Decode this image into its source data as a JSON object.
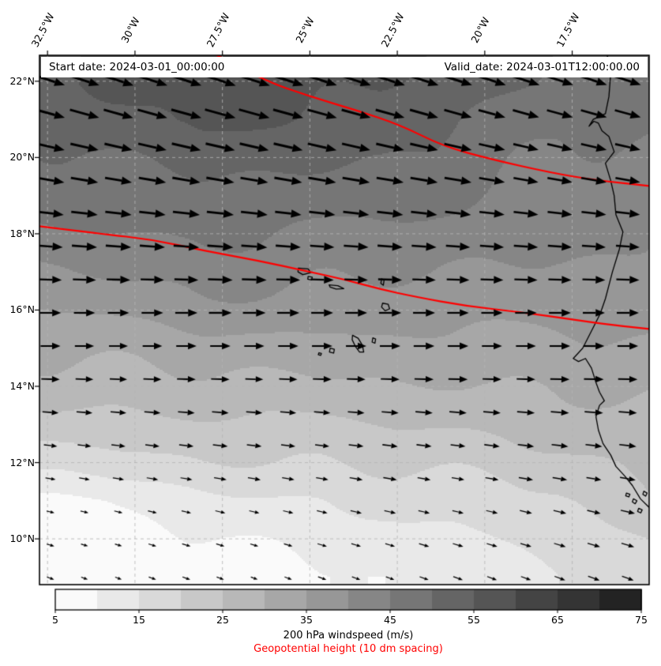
{
  "header": {
    "start_date": "Start date: 2024-03-01_00:00:00",
    "valid_date": "Valid_date: 2024-03-01T12:00:00.00"
  },
  "chart_data": {
    "type": "heatmap",
    "title": "",
    "grid_color": "#b5b5b5",
    "projection": {
      "lon_min": -32.73,
      "lon_max": -15.3,
      "lat_min": 8.8,
      "lat_max": 22.68
    },
    "x_axis": {
      "tick_values": [
        -32.5,
        -30,
        -27.5,
        -25,
        -22.5,
        -20,
        -17.5
      ],
      "tick_labels": [
        "32.5°W",
        "30°W",
        "27.5°W",
        "25°W",
        "22.5°W",
        "20°W",
        "17.5°W"
      ]
    },
    "y_axis": {
      "tick_values": [
        22,
        20,
        18,
        16,
        14,
        12,
        10
      ],
      "tick_labels": [
        "22°N",
        "20°N",
        "18°N",
        "16°N",
        "14°N",
        "12°N",
        "10°N"
      ]
    },
    "windspeed_field": {
      "units": "m/s",
      "lons": [
        -33,
        -28,
        -23,
        -18,
        -15
      ],
      "lats": [
        23,
        22,
        21,
        20,
        19,
        18,
        17,
        16,
        15,
        14,
        13,
        12,
        11,
        10,
        9
      ],
      "speeds": [
        [
          52,
          57,
          57,
          50,
          46
        ],
        [
          53,
          58,
          56,
          49,
          46
        ],
        [
          52,
          56,
          53,
          47,
          45
        ],
        [
          49,
          52,
          50,
          45,
          44
        ],
        [
          46,
          49,
          47,
          43,
          42
        ],
        [
          43,
          46,
          44,
          41,
          40
        ],
        [
          39,
          42,
          41,
          39,
          38
        ],
        [
          35,
          38,
          37,
          37,
          37
        ],
        [
          31,
          33,
          33,
          34,
          35
        ],
        [
          27,
          29,
          29,
          30,
          32
        ],
        [
          22,
          24,
          25,
          27,
          29
        ],
        [
          17,
          19,
          21,
          23,
          26
        ],
        [
          9,
          13,
          16,
          19,
          25
        ],
        [
          7,
          10,
          12,
          17,
          22
        ],
        [
          6,
          8,
          10,
          14,
          20
        ]
      ],
      "arrow_angles_by_lat": [
        -20,
        -18,
        -15,
        -12,
        -8,
        -5,
        -2,
        0,
        0,
        -2,
        -5,
        -8,
        -12,
        -16,
        -20
      ]
    },
    "geopotential_contours": {
      "color": "#ff0000",
      "spacing": "10 dm",
      "lines": [
        [
          [
            -27.8,
            22.75
          ],
          [
            -26.4,
            22.05
          ],
          [
            -25.0,
            21.6
          ],
          [
            -23.7,
            21.25
          ],
          [
            -22.4,
            20.85
          ],
          [
            -21.2,
            20.3
          ],
          [
            -19.8,
            19.95
          ],
          [
            -18.1,
            19.6
          ],
          [
            -16.8,
            19.4
          ],
          [
            -15.25,
            19.25
          ]
        ],
        [
          [
            -32.75,
            18.2
          ],
          [
            -31.0,
            18.0
          ],
          [
            -29.5,
            17.85
          ],
          [
            -28.0,
            17.55
          ],
          [
            -26.5,
            17.3
          ],
          [
            -25.0,
            17.0
          ],
          [
            -24.0,
            16.8
          ],
          [
            -23.0,
            16.55
          ],
          [
            -22.0,
            16.35
          ],
          [
            -20.5,
            16.1
          ],
          [
            -19.0,
            15.95
          ],
          [
            -17.5,
            15.75
          ],
          [
            -16.3,
            15.6
          ],
          [
            -15.25,
            15.5
          ]
        ]
      ]
    },
    "coastline": {
      "main": [
        [
          -16.5,
          22.68
        ],
        [
          -16.4,
          22.2
        ],
        [
          -16.45,
          21.6
        ],
        [
          -16.55,
          21.15
        ],
        [
          -16.9,
          21.0
        ],
        [
          -17.02,
          20.82
        ],
        [
          -16.88,
          20.95
        ],
        [
          -16.75,
          20.9
        ],
        [
          -16.65,
          20.7
        ],
        [
          -16.45,
          20.55
        ],
        [
          -16.3,
          20.15
        ],
        [
          -16.55,
          19.85
        ],
        [
          -16.4,
          19.4
        ],
        [
          -16.3,
          19.0
        ],
        [
          -16.25,
          18.5
        ],
        [
          -16.05,
          18.05
        ],
        [
          -16.15,
          17.6
        ],
        [
          -16.35,
          17.0
        ],
        [
          -16.55,
          16.3
        ],
        [
          -16.7,
          15.9
        ],
        [
          -16.95,
          15.45
        ],
        [
          -17.2,
          15.0
        ],
        [
          -17.47,
          14.73
        ],
        [
          -17.32,
          14.65
        ],
        [
          -17.12,
          14.73
        ],
        [
          -16.95,
          14.48
        ],
        [
          -16.82,
          14.1
        ],
        [
          -16.72,
          13.85
        ],
        [
          -16.58,
          13.62
        ],
        [
          -16.72,
          13.5
        ],
        [
          -16.82,
          13.2
        ],
        [
          -16.75,
          12.85
        ],
        [
          -16.62,
          12.5
        ],
        [
          -16.4,
          12.2
        ],
        [
          -16.25,
          11.9
        ],
        [
          -16.0,
          11.65
        ],
        [
          -15.78,
          11.4
        ],
        [
          -15.55,
          11.05
        ],
        [
          -15.25,
          10.78
        ]
      ],
      "islands": [
        {
          "name": "santo-antao",
          "pts": [
            [
              -25.33,
              17.1
            ],
            [
              -25.05,
              17.08
            ],
            [
              -24.97,
              16.98
            ],
            [
              -25.2,
              16.93
            ],
            [
              -25.34,
              17.0
            ]
          ]
        },
        {
          "name": "sao-vicente",
          "pts": [
            [
              -25.05,
              16.88
            ],
            [
              -24.93,
              16.86
            ],
            [
              -24.95,
              16.79
            ],
            [
              -25.06,
              16.81
            ]
          ]
        },
        {
          "name": "sao-nicolau",
          "pts": [
            [
              -24.45,
              16.66
            ],
            [
              -24.2,
              16.64
            ],
            [
              -24.03,
              16.56
            ],
            [
              -24.25,
              16.55
            ],
            [
              -24.42,
              16.6
            ]
          ]
        },
        {
          "name": "sal",
          "pts": [
            [
              -22.95,
              16.82
            ],
            [
              -22.88,
              16.78
            ],
            [
              -22.9,
              16.65
            ],
            [
              -22.97,
              16.7
            ]
          ]
        },
        {
          "name": "boa-vista",
          "pts": [
            [
              -22.92,
              16.18
            ],
            [
              -22.76,
              16.15
            ],
            [
              -22.72,
              16.03
            ],
            [
              -22.85,
              15.98
            ],
            [
              -22.95,
              16.08
            ]
          ]
        },
        {
          "name": "maio",
          "pts": [
            [
              -23.2,
              15.27
            ],
            [
              -23.12,
              15.24
            ],
            [
              -23.14,
              15.13
            ],
            [
              -23.22,
              15.16
            ]
          ]
        },
        {
          "name": "santiago",
          "pts": [
            [
              -23.78,
              15.34
            ],
            [
              -23.62,
              15.26
            ],
            [
              -23.5,
              15.08
            ],
            [
              -23.46,
              14.9
            ],
            [
              -23.58,
              14.9
            ],
            [
              -23.7,
              15.05
            ],
            [
              -23.79,
              15.22
            ]
          ]
        },
        {
          "name": "fogo",
          "pts": [
            [
              -24.42,
              15.0
            ],
            [
              -24.3,
              14.97
            ],
            [
              -24.32,
              14.87
            ],
            [
              -24.44,
              14.9
            ]
          ]
        },
        {
          "name": "brava",
          "pts": [
            [
              -24.74,
              14.88
            ],
            [
              -24.67,
              14.86
            ],
            [
              -24.69,
              14.81
            ],
            [
              -24.76,
              14.83
            ]
          ]
        },
        {
          "name": "bijagos-1",
          "pts": [
            [
              -15.95,
              11.2
            ],
            [
              -15.85,
              11.17
            ],
            [
              -15.88,
              11.1
            ],
            [
              -15.97,
              11.13
            ]
          ]
        },
        {
          "name": "bijagos-2",
          "pts": [
            [
              -15.75,
              11.05
            ],
            [
              -15.65,
              11.0
            ],
            [
              -15.7,
              10.92
            ],
            [
              -15.78,
              10.97
            ]
          ]
        },
        {
          "name": "bijagos-3",
          "pts": [
            [
              -15.6,
              10.8
            ],
            [
              -15.5,
              10.76
            ],
            [
              -15.54,
              10.68
            ],
            [
              -15.63,
              10.72
            ]
          ]
        },
        {
          "name": "bijagos-4",
          "pts": [
            [
              -15.45,
              11.25
            ],
            [
              -15.36,
              11.2
            ],
            [
              -15.4,
              11.12
            ],
            [
              -15.48,
              11.17
            ]
          ]
        }
      ]
    },
    "colorbar": {
      "tick_labels": [
        "5",
        "15",
        "25",
        "35",
        "45",
        "55",
        "65",
        "75"
      ],
      "colors": [
        "#fafafa",
        "#e9e9e9",
        "#d9d9d9",
        "#c8c8c8",
        "#b8b8b8",
        "#a7a7a7",
        "#979797",
        "#868686",
        "#767676",
        "#656565",
        "#555555",
        "#444444",
        "#343434",
        "#232323"
      ],
      "label_main": "200 hPa windspeed (m/s)",
      "label_secondary": "Geopotential height (10 dm spacing)",
      "secondary_color": "#ff0000"
    }
  }
}
